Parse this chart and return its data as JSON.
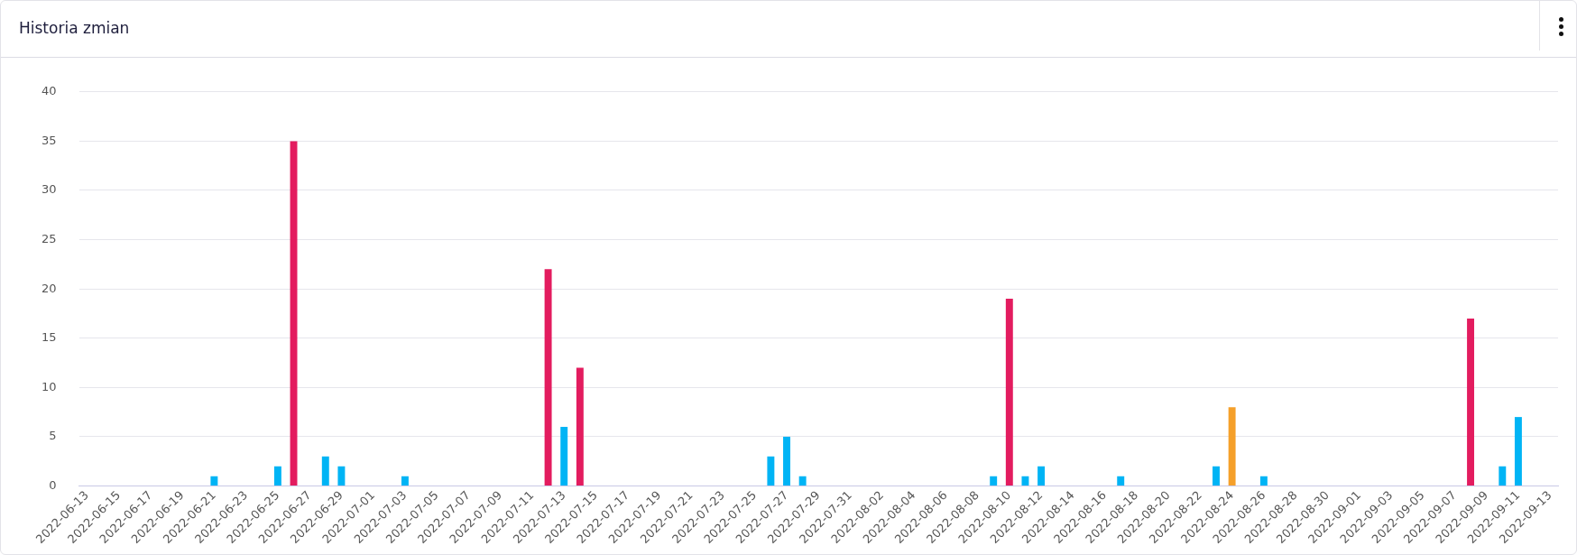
{
  "chart_data": {
    "type": "bar",
    "title": "Historia zmian",
    "categories": [
      "2022-06-13",
      null,
      "2022-06-15",
      null,
      "2022-06-17",
      null,
      "2022-06-19",
      null,
      "2022-06-21",
      null,
      "2022-06-23",
      null,
      "2022-06-25",
      null,
      "2022-06-27",
      null,
      "2022-06-29",
      null,
      "2022-07-01",
      null,
      "2022-07-03",
      null,
      "2022-07-05",
      null,
      "2022-07-07",
      null,
      "2022-07-09",
      null,
      "2022-07-11",
      null,
      "2022-07-13",
      null,
      "2022-07-15",
      null,
      "2022-07-17",
      null,
      "2022-07-19",
      null,
      "2022-07-21",
      null,
      "2022-07-23",
      null,
      "2022-07-25",
      null,
      "2022-07-27",
      null,
      "2022-07-29",
      null,
      "2022-07-31",
      null,
      "2022-08-02",
      null,
      "2022-08-04",
      null,
      "2022-08-06",
      null,
      "2022-08-08",
      null,
      "2022-08-10",
      null,
      "2022-08-12",
      null,
      "2022-08-14",
      null,
      "2022-08-16",
      null,
      "2022-08-18",
      null,
      "2022-08-20",
      null,
      "2022-08-22",
      null,
      "2022-08-24",
      null,
      "2022-08-26",
      null,
      "2022-08-28",
      null,
      "2022-08-30",
      null,
      "2022-09-01",
      null,
      "2022-09-03",
      null,
      "2022-09-05",
      null,
      "2022-09-07",
      null,
      "2022-09-09",
      null,
      "2022-09-11",
      null,
      "2022-09-13"
    ],
    "values": [
      0,
      0,
      0,
      0,
      0,
      0,
      0,
      0,
      1,
      0,
      0,
      0,
      2,
      35,
      0,
      3,
      2,
      0,
      0,
      0,
      1,
      0,
      0,
      0,
      0,
      0,
      0,
      0,
      0,
      22,
      6,
      12,
      0,
      0,
      0,
      0,
      0,
      0,
      0,
      0,
      0,
      0,
      0,
      3,
      5,
      1,
      0,
      0,
      0,
      0,
      0,
      0,
      0,
      0,
      0,
      0,
      0,
      1,
      19,
      1,
      2,
      0,
      0,
      0,
      0,
      1,
      0,
      0,
      0,
      0,
      0,
      2,
      8,
      0,
      1,
      0,
      0,
      0,
      0,
      0,
      0,
      0,
      0,
      0,
      0,
      0,
      0,
      17,
      0,
      2,
      7,
      0,
      0
    ],
    "colors": [
      "#00b4f5",
      "#00b4f5",
      "#00b4f5",
      "#00b4f5",
      "#00b4f5",
      "#00b4f5",
      "#00b4f5",
      "#00b4f5",
      "#00b4f5",
      "#00b4f5",
      "#00b4f5",
      "#00b4f5",
      "#00b4f5",
      "#e31c5f",
      "#00b4f5",
      "#00b4f5",
      "#00b4f5",
      "#00b4f5",
      "#00b4f5",
      "#00b4f5",
      "#00b4f5",
      "#00b4f5",
      "#00b4f5",
      "#00b4f5",
      "#00b4f5",
      "#00b4f5",
      "#00b4f5",
      "#00b4f5",
      "#00b4f5",
      "#e31c5f",
      "#00b4f5",
      "#e31c5f",
      "#00b4f5",
      "#00b4f5",
      "#00b4f5",
      "#00b4f5",
      "#00b4f5",
      "#00b4f5",
      "#00b4f5",
      "#00b4f5",
      "#00b4f5",
      "#00b4f5",
      "#00b4f5",
      "#00b4f5",
      "#00b4f5",
      "#00b4f5",
      "#00b4f5",
      "#00b4f5",
      "#00b4f5",
      "#00b4f5",
      "#00b4f5",
      "#00b4f5",
      "#00b4f5",
      "#00b4f5",
      "#00b4f5",
      "#00b4f5",
      "#00b4f5",
      "#00b4f5",
      "#e31c5f",
      "#00b4f5",
      "#00b4f5",
      "#00b4f5",
      "#00b4f5",
      "#00b4f5",
      "#00b4f5",
      "#00b4f5",
      "#00b4f5",
      "#00b4f5",
      "#00b4f5",
      "#00b4f5",
      "#00b4f5",
      "#00b4f5",
      "#f5a02a",
      "#00b4f5",
      "#00b4f5",
      "#00b4f5",
      "#00b4f5",
      "#00b4f5",
      "#00b4f5",
      "#00b4f5",
      "#00b4f5",
      "#00b4f5",
      "#00b4f5",
      "#00b4f5",
      "#00b4f5",
      "#00b4f5",
      "#00b4f5",
      "#e31c5f",
      "#00b4f5",
      "#00b4f5",
      "#00b4f5",
      "#00b4f5",
      "#00b4f5"
    ],
    "ylim": [
      0,
      40
    ],
    "yticks": [
      0,
      5,
      10,
      15,
      20,
      25,
      30,
      35,
      40
    ],
    "grid": "y",
    "legend": false
  }
}
